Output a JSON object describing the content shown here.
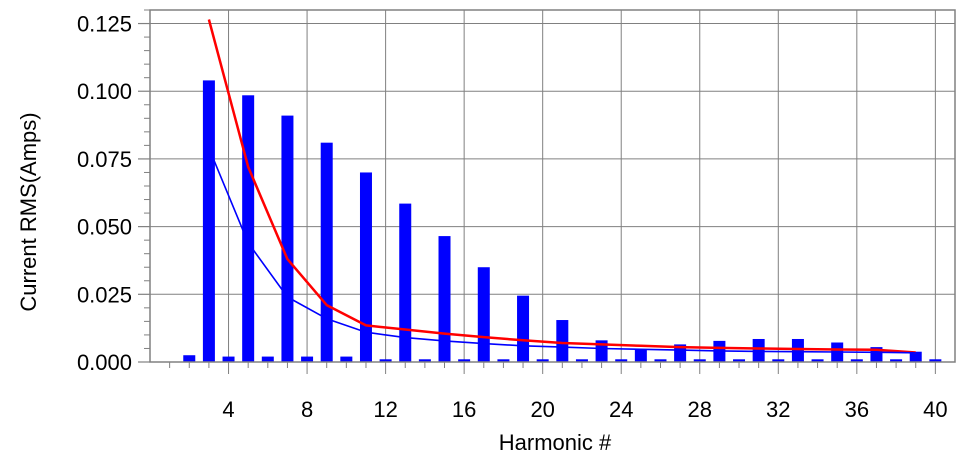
{
  "chart_data": {
    "type": "bar",
    "xlabel": "Harmonic #",
    "ylabel": "Current RMS(Amps)",
    "xlim": [
      0,
      41
    ],
    "ylim": [
      0,
      0.13
    ],
    "x_ticks": [
      4,
      8,
      12,
      16,
      20,
      24,
      28,
      32,
      36,
      40
    ],
    "y_ticks": [
      0.0,
      0.025,
      0.05,
      0.075,
      0.1,
      0.125
    ],
    "x_tick_labels": [
      "4",
      "8",
      "12",
      "16",
      "20",
      "24",
      "28",
      "32",
      "36",
      "40"
    ],
    "y_tick_labels": [
      "0.000",
      "0.025",
      "0.050",
      "0.075",
      "0.100",
      "0.125"
    ],
    "grid": true,
    "bar_color": "#0000ff",
    "bars": {
      "harmonic": [
        2,
        3,
        4,
        5,
        6,
        7,
        8,
        9,
        10,
        11,
        12,
        13,
        14,
        15,
        16,
        17,
        18,
        19,
        20,
        21,
        22,
        23,
        24,
        25,
        26,
        27,
        28,
        29,
        30,
        31,
        32,
        33,
        34,
        35,
        36,
        37,
        38,
        39,
        40
      ],
      "values": [
        0.0025,
        0.104,
        0.002,
        0.0985,
        0.002,
        0.091,
        0.002,
        0.081,
        0.002,
        0.07,
        0.001,
        0.0585,
        0.001,
        0.0465,
        0.001,
        0.035,
        0.001,
        0.0245,
        0.001,
        0.0155,
        0.001,
        0.008,
        0.001,
        0.0048,
        0.001,
        0.0065,
        0.001,
        0.0078,
        0.001,
        0.0085,
        0.001,
        0.0085,
        0.001,
        0.0072,
        0.001,
        0.0055,
        0.001,
        0.0038,
        0.001
      ]
    },
    "series": [
      {
        "color": "#ff0000",
        "x": [
          3,
          5,
          7,
          9,
          11,
          13,
          15,
          17,
          19,
          21,
          23,
          25,
          27,
          29,
          31,
          33,
          35,
          37,
          39
        ],
        "values": [
          0.1265,
          0.072,
          0.038,
          0.021,
          0.0135,
          0.012,
          0.0105,
          0.0092,
          0.008,
          0.007,
          0.0065,
          0.006,
          0.0055,
          0.0052,
          0.005,
          0.0048,
          0.0046,
          0.0045,
          0.0035
        ]
      },
      {
        "color": "#0000ff",
        "x": [
          3,
          5,
          7,
          9,
          11,
          13,
          15,
          17,
          19,
          21,
          23,
          25,
          27,
          29,
          31,
          33,
          35,
          37,
          39
        ],
        "values": [
          0.079,
          0.044,
          0.024,
          0.016,
          0.011,
          0.009,
          0.0078,
          0.0068,
          0.006,
          0.0055,
          0.005,
          0.0047,
          0.0044,
          0.0041,
          0.0039,
          0.0038,
          0.0037,
          0.0036,
          0.0034
        ]
      }
    ]
  }
}
